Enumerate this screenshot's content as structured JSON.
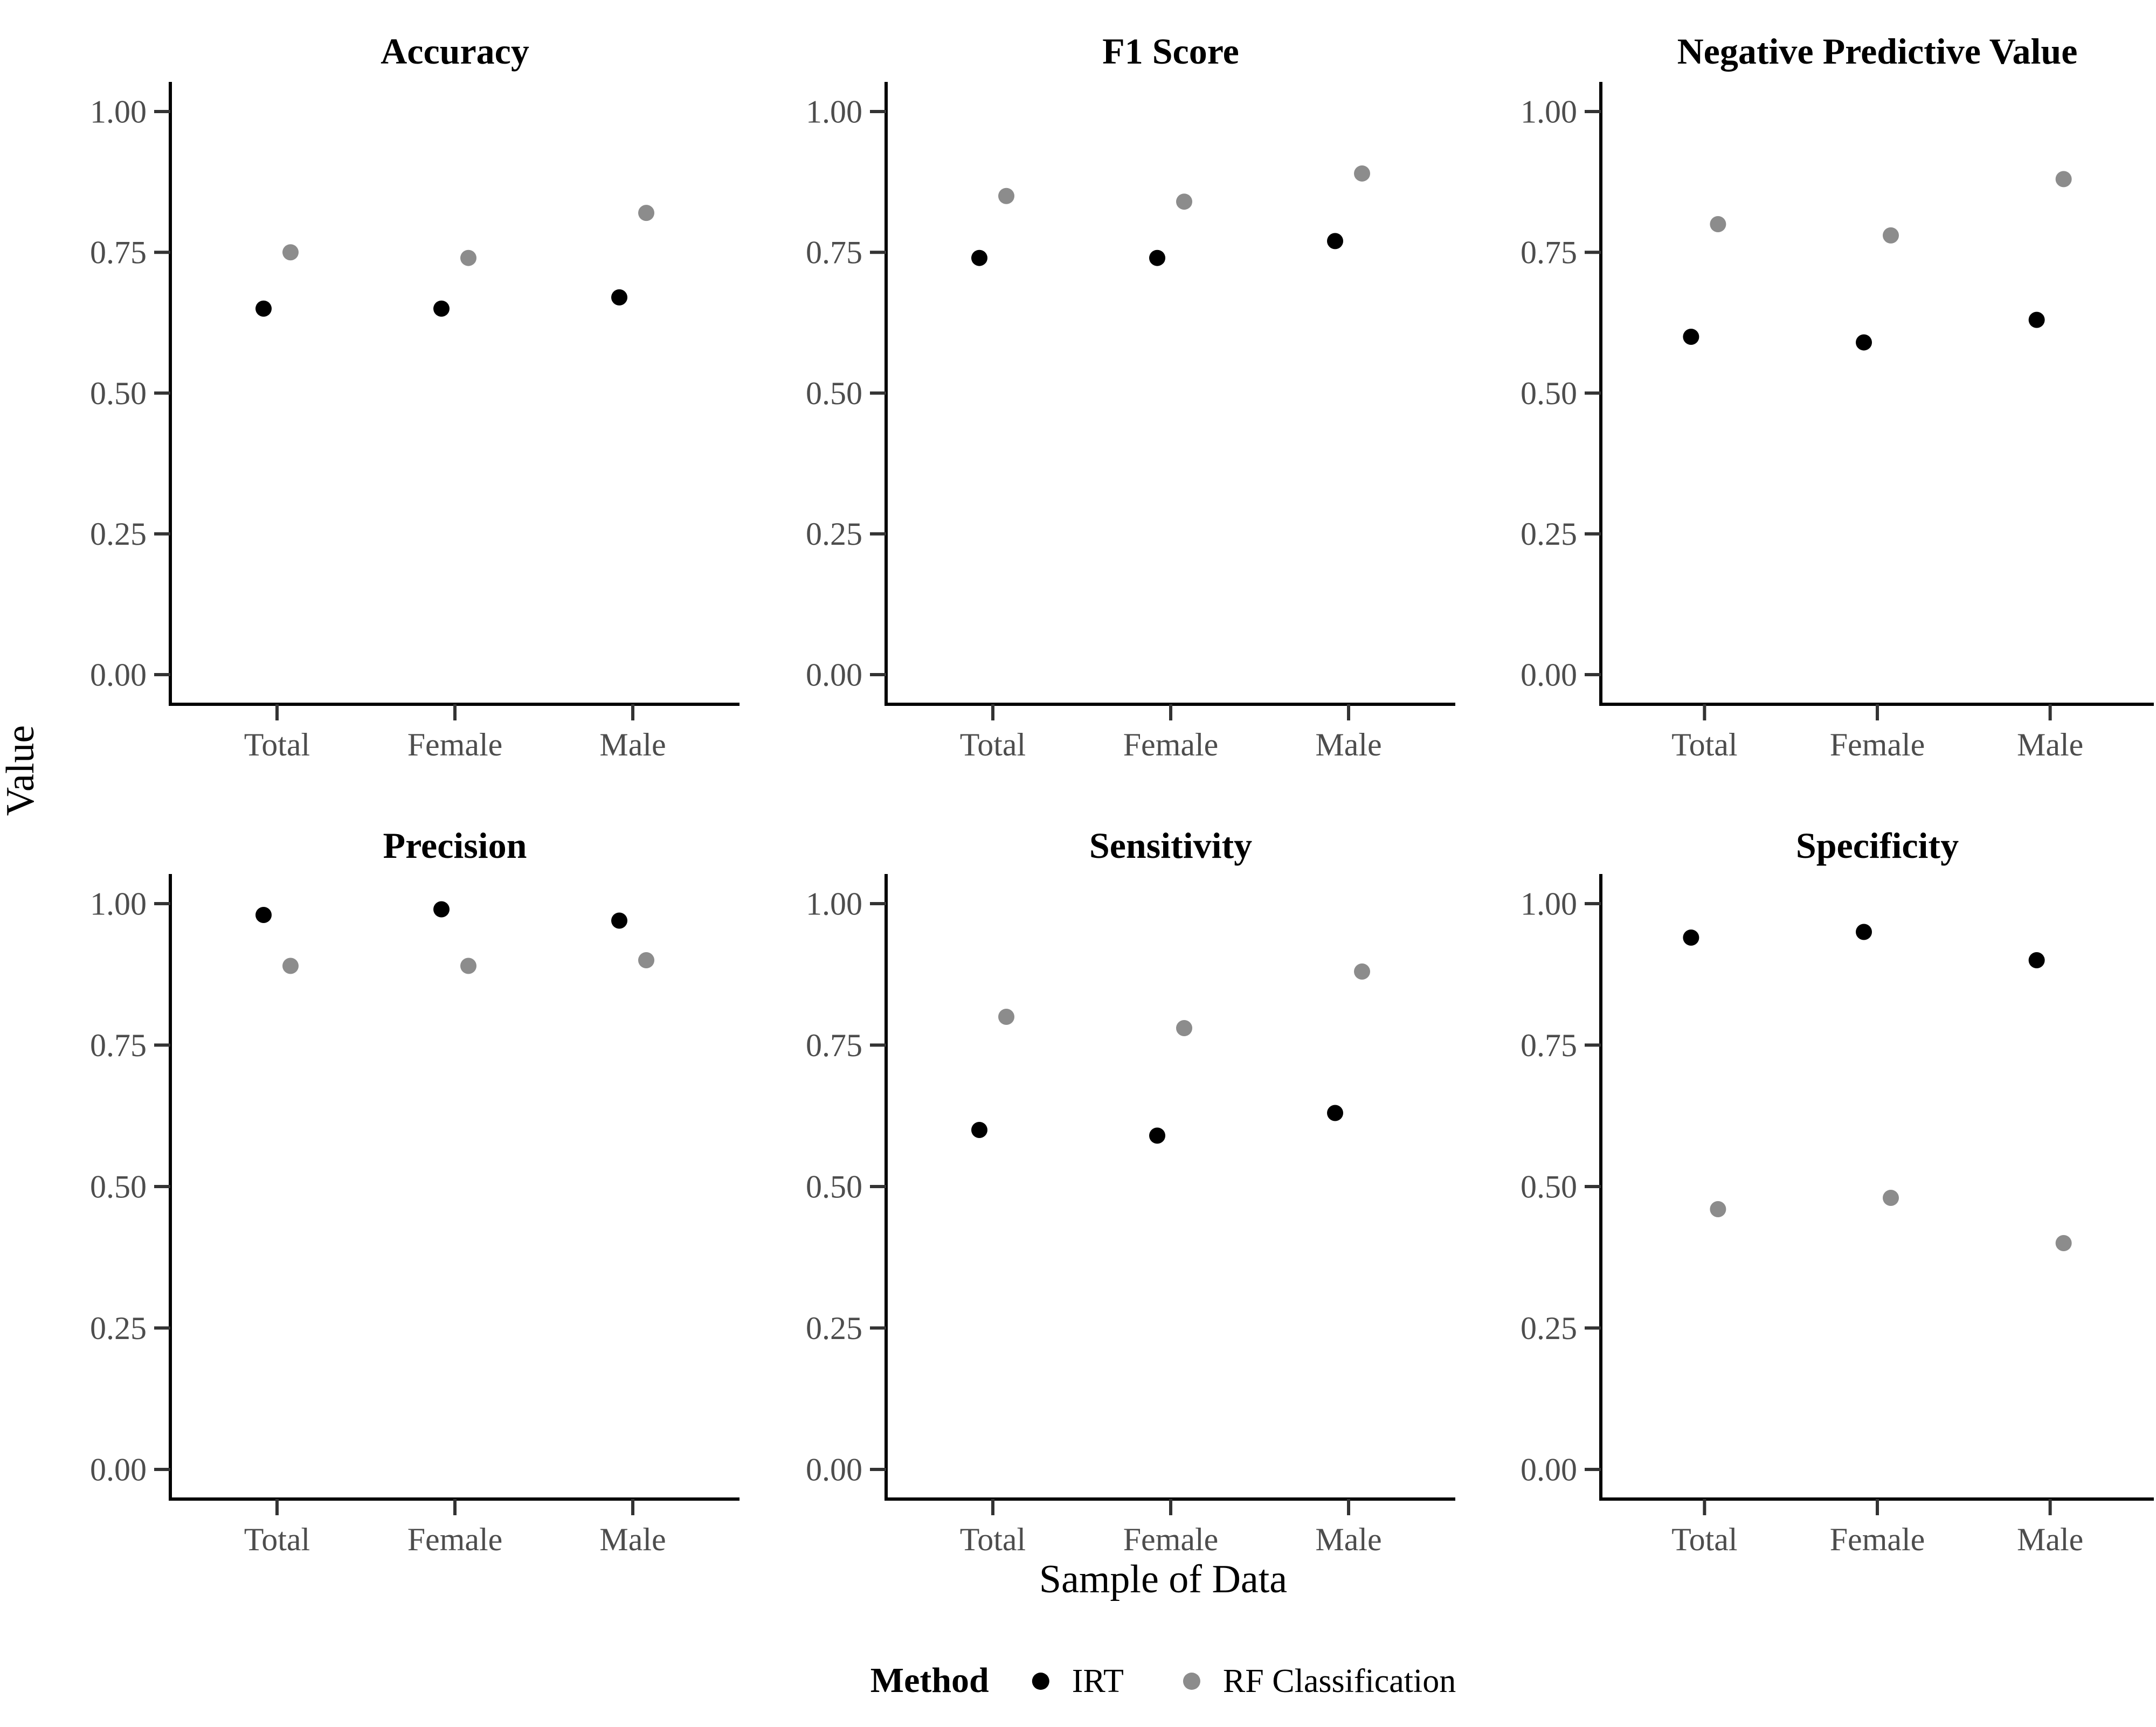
{
  "figure": {
    "y_axis_title": "Value",
    "x_axis_title": "Sample of Data",
    "legend": {
      "title": "Method",
      "items": [
        {
          "label": "IRT",
          "color": "#000000"
        },
        {
          "label": "RF Classification",
          "color": "#8c8c8c"
        }
      ]
    }
  },
  "chart_data": {
    "type": "scatter",
    "facet_grid": {
      "rows": 2,
      "cols": 3
    },
    "categories": [
      "Total",
      "Female",
      "Male"
    ],
    "y_ticks": [
      1.0,
      0.75,
      0.5,
      0.25,
      0.0
    ],
    "y_tick_labels": [
      "1.00",
      "0.75",
      "0.50",
      "0.25",
      "0.00"
    ],
    "ylim": [
      0,
      1
    ],
    "grid": false,
    "legend_position": "bottom",
    "series_names": [
      "IRT",
      "RF Classification"
    ],
    "series_colors": {
      "IRT": "#000000",
      "RF Classification": "#8c8c8c"
    },
    "facets": [
      {
        "title": "Accuracy",
        "series": [
          {
            "name": "IRT",
            "values": [
              0.65,
              0.65,
              0.67
            ]
          },
          {
            "name": "RF Classification",
            "values": [
              0.75,
              0.74,
              0.82
            ]
          }
        ]
      },
      {
        "title": "F1 Score",
        "series": [
          {
            "name": "IRT",
            "values": [
              0.74,
              0.74,
              0.77
            ]
          },
          {
            "name": "RF Classification",
            "values": [
              0.85,
              0.84,
              0.89
            ]
          }
        ]
      },
      {
        "title": "Negative Predictive Value",
        "series": [
          {
            "name": "IRT",
            "values": [
              0.6,
              0.59,
              0.63
            ]
          },
          {
            "name": "RF Classification",
            "values": [
              0.8,
              0.78,
              0.88
            ]
          }
        ]
      },
      {
        "title": "Precision",
        "series": [
          {
            "name": "IRT",
            "values": [
              0.98,
              0.99,
              0.97
            ]
          },
          {
            "name": "RF Classification",
            "values": [
              0.89,
              0.89,
              0.9
            ]
          }
        ]
      },
      {
        "title": "Sensitivity",
        "series": [
          {
            "name": "IRT",
            "values": [
              0.6,
              0.59,
              0.63
            ]
          },
          {
            "name": "RF Classification",
            "values": [
              0.8,
              0.78,
              0.88
            ]
          }
        ]
      },
      {
        "title": "Specificity",
        "series": [
          {
            "name": "IRT",
            "values": [
              0.94,
              0.95,
              0.9
            ]
          },
          {
            "name": "RF Classification",
            "values": [
              0.46,
              0.48,
              0.4
            ]
          }
        ]
      }
    ],
    "style": {
      "background": "#ffffff",
      "axis_color": "#000000",
      "tick_mark_color": "#333333",
      "tick_label_color": "#4d4d4d",
      "title_color": "#000000"
    }
  }
}
